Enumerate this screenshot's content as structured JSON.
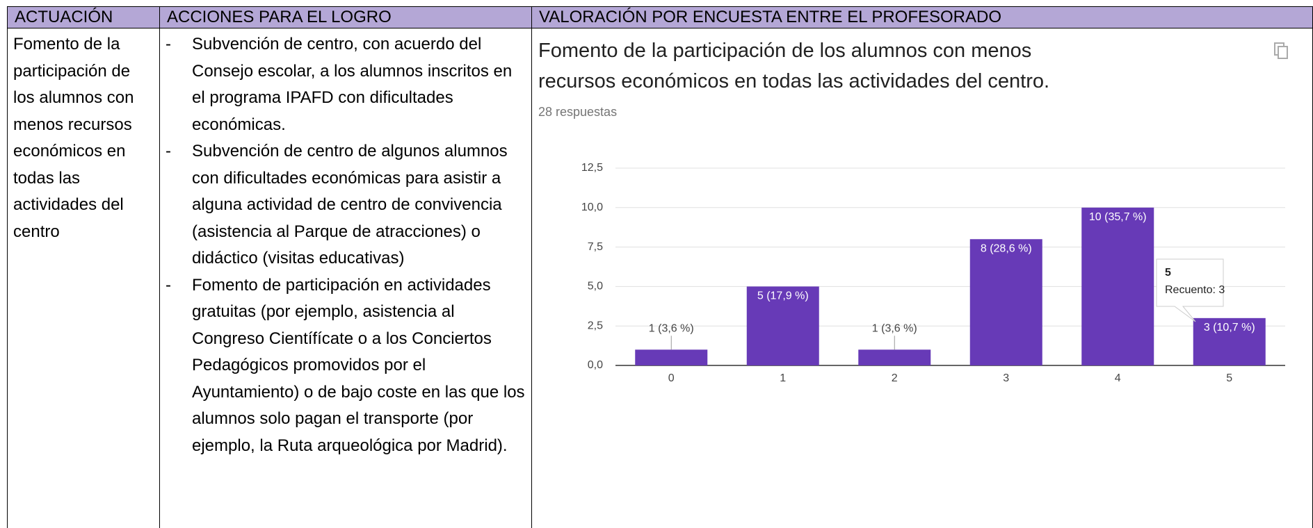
{
  "table": {
    "headers": [
      "ACTUACIÓN",
      "ACCIONES PARA EL LOGRO",
      "VALORACIÓN POR ENCUESTA ENTRE EL PROFESORADO"
    ],
    "actuacion": "Fomento de la participación de los alumnos con menos recursos económicos en todas las actividades del centro",
    "acciones": [
      "Subvención de centro, con acuerdo del Consejo escolar, a los alumnos inscritos en el programa IPAFD con dificultades económicas.",
      "Subvención de centro de algunos alumnos con dificultades económicas para asistir a alguna actividad de centro de convivencia (asistencia al Parque de atracciones) o didáctico (visitas educativas)",
      "Fomento de participación en actividades gratuitas (por ejemplo, asistencia al Congreso Científícate o a los Conciertos Pedagógicos promovidos por el Ayuntamiento) o de bajo coste en las que los alumnos solo pagan el transporte (por ejemplo, la Ruta arqueológica por Madrid)."
    ]
  },
  "chart_data": {
    "type": "bar",
    "title": "Fomento de la participación de los alumnos con menos recursos económicos en todas las actividades del centro.",
    "subtitle": "28 respuestas",
    "categories": [
      "0",
      "1",
      "2",
      "3",
      "4",
      "5"
    ],
    "values": [
      1,
      5,
      1,
      8,
      10,
      3
    ],
    "value_labels": [
      "1 (3,6 %)",
      "5 (17,9 %)",
      "1 (3,6 %)",
      "8 (28,6 %)",
      "10 (35,7 %)",
      "3 (10,7 %)"
    ],
    "color": "#673ab7",
    "ylim": [
      0,
      12.5
    ],
    "yticks": [
      {
        "value": 0,
        "label": "0,0"
      },
      {
        "value": 2.5,
        "label": "2,5"
      },
      {
        "value": 5,
        "label": "5,0"
      },
      {
        "value": 7.5,
        "label": "7,5"
      },
      {
        "value": 10,
        "label": "10,0"
      },
      {
        "value": 12.5,
        "label": "12,5"
      }
    ],
    "grid": true,
    "tooltip": {
      "title": "5",
      "text": "Recuento: 3"
    }
  }
}
